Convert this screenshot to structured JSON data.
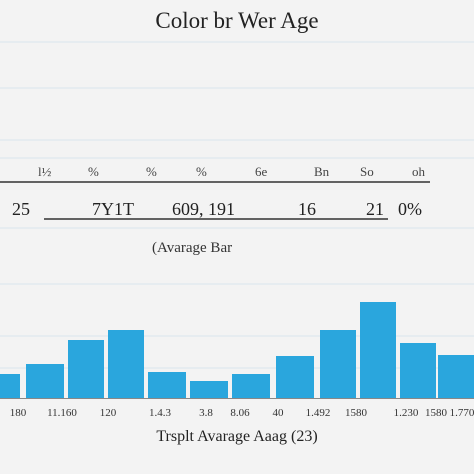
{
  "chart_data": {
    "type": "bar",
    "title": "Color br Wer Age",
    "header_row": [
      "l½",
      "%",
      "%",
      "%",
      "6e",
      "Bn",
      "So",
      "oh"
    ],
    "value_row": [
      "25",
      "7Y1T",
      "609, 191",
      "16",
      "21",
      "0%"
    ],
    "subtitle": "(Avarage Bar",
    "xlabel": "Trsplt Avarage Aaag (23)",
    "categories": [
      "180",
      "11.160",
      "120",
      "1.4.3",
      "3.8",
      "8.06",
      "40",
      "1.492",
      "1580",
      "1.230",
      "1580",
      "1.770"
    ],
    "values": [
      24,
      34,
      58,
      68,
      26,
      17,
      24,
      42,
      68,
      96,
      55,
      43
    ],
    "ylim": [
      0,
      110
    ],
    "grid": true,
    "bar_color": "#2aa6dd"
  }
}
